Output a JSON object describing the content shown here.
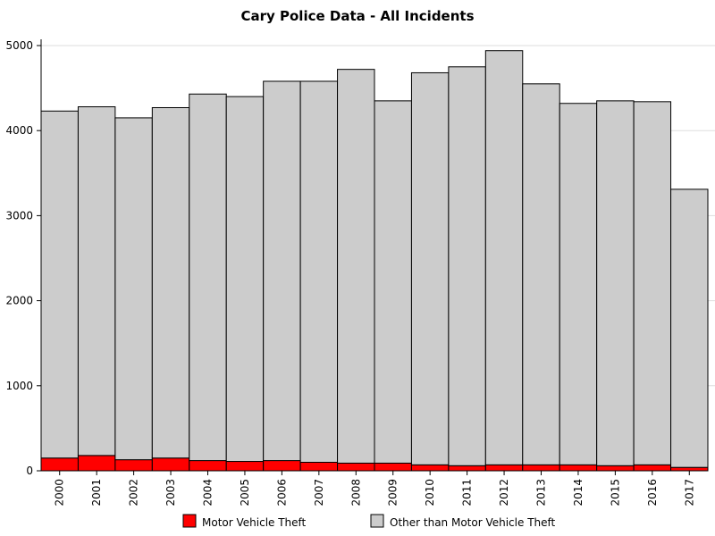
{
  "chart_data": {
    "type": "bar",
    "stacked": true,
    "title": "Cary Police Data - All Incidents",
    "xlabel": "",
    "ylabel": "",
    "ylim": [
      0,
      5000
    ],
    "yticks": [
      0,
      1000,
      2000,
      3000,
      4000,
      5000
    ],
    "grid": true,
    "legend_position": "bottom",
    "categories": [
      "2000",
      "2001",
      "2002",
      "2003",
      "2004",
      "2005",
      "2006",
      "2007",
      "2008",
      "2009",
      "2010",
      "2011",
      "2012",
      "2013",
      "2014",
      "2015",
      "2016",
      "2017"
    ],
    "series": [
      {
        "name": "Motor Vehicle Theft",
        "color": "#ff0000",
        "values": [
          150,
          180,
          130,
          150,
          120,
          110,
          120,
          100,
          90,
          90,
          70,
          60,
          70,
          70,
          70,
          60,
          70,
          40
        ]
      },
      {
        "name": "Other than Motor Vehicle Theft",
        "color": "#cccccc",
        "values": [
          4080,
          4100,
          4020,
          4120,
          4310,
          4290,
          4460,
          4480,
          4630,
          4260,
          4610,
          4690,
          4870,
          4480,
          4250,
          4290,
          4270,
          3270
        ]
      }
    ]
  }
}
